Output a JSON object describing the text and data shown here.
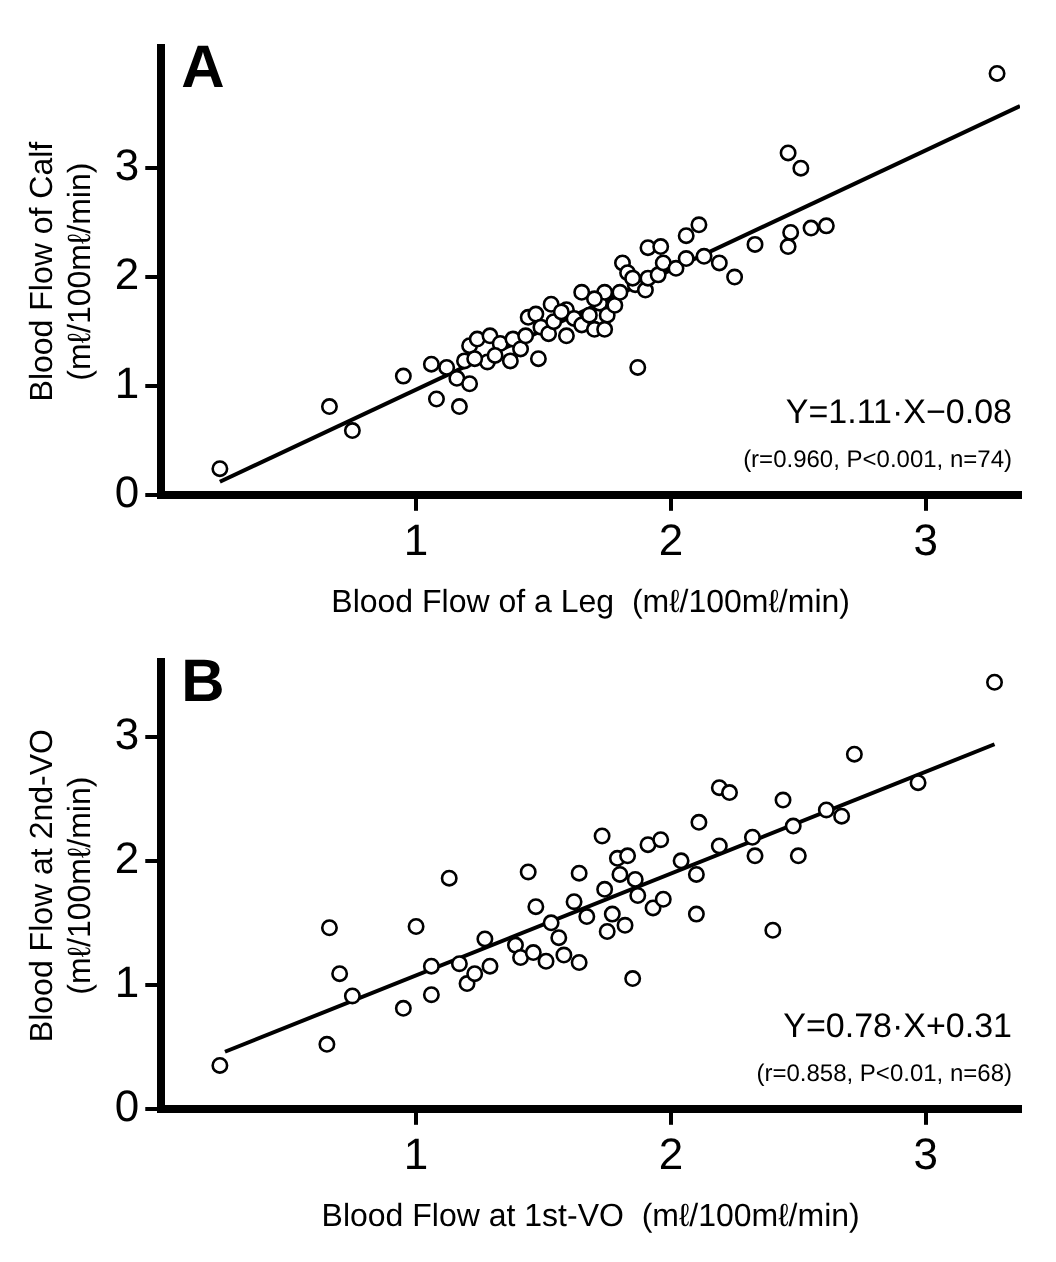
{
  "chart_data": [
    {
      "type": "scatter",
      "title": "A",
      "xlabel": "Blood Flow of a Leg  (mℓ/100mℓ/min)",
      "ylabel": "Blood Flow of Calf\n(mℓ/100mℓ/min)",
      "annotations": [
        "Y=1.11·X−0.08",
        "(r=0.960, P<0.001, n=74)"
      ],
      "xlim": [
        0,
        3.37
      ],
      "ylim": [
        0,
        4.1
      ],
      "xticks": [
        1,
        2,
        3
      ],
      "yticks": [
        0,
        1,
        2,
        3
      ],
      "marker": "circle",
      "grid": false,
      "legend": false,
      "series": [
        {
          "color": "#000000",
          "x": [
            0.23,
            0.66,
            0.75,
            0.95,
            1.06,
            1.08,
            1.12,
            1.17,
            1.16,
            1.21,
            1.19,
            1.21,
            1.24,
            1.29,
            1.28,
            1.33,
            1.37,
            1.38,
            1.41,
            1.43,
            1.44,
            1.48,
            1.47,
            1.49,
            1.52,
            1.53,
            1.54,
            1.59,
            1.59,
            1.62,
            1.65,
            1.65,
            1.68,
            1.7,
            1.72,
            1.74,
            1.75,
            1.78,
            1.81,
            1.8,
            1.83,
            1.86,
            1.87,
            1.9,
            1.91,
            1.96,
            1.91,
            1.95,
            1.97,
            2.02,
            2.06,
            2.06,
            2.11,
            2.13,
            2.19,
            2.25,
            2.33,
            2.46,
            2.51,
            2.46,
            2.47,
            2.55,
            2.61,
            3.28,
            1.23,
            1.31,
            1.57,
            1.7,
            1.85,
            1.74
          ],
          "values": [
            0.24,
            0.81,
            0.59,
            1.09,
            1.2,
            0.88,
            1.17,
            0.81,
            1.07,
            1.02,
            1.23,
            1.37,
            1.43,
            1.46,
            1.22,
            1.39,
            1.23,
            1.43,
            1.34,
            1.46,
            1.63,
            1.25,
            1.66,
            1.54,
            1.48,
            1.75,
            1.59,
            1.46,
            1.7,
            1.62,
            1.86,
            1.56,
            1.65,
            1.52,
            1.76,
            1.86,
            1.65,
            1.74,
            2.13,
            1.86,
            2.04,
            1.93,
            1.17,
            1.88,
            2.27,
            2.28,
            1.99,
            2.02,
            2.13,
            2.08,
            2.38,
            2.17,
            2.48,
            2.19,
            2.13,
            2.0,
            2.3,
            3.14,
            3.0,
            2.28,
            2.41,
            2.45,
            2.47,
            3.87,
            1.25,
            1.28,
            1.68,
            1.8,
            1.99,
            1.52
          ]
        },
        {
          "type": "line",
          "color": "#000000",
          "marker": "none",
          "x": [
            0.23,
            3.37
          ],
          "values": [
            0.12,
            3.57
          ]
        }
      ]
    },
    {
      "type": "scatter",
      "title": "B",
      "xlabel": "Blood Flow at 1st-VO  (mℓ/100mℓ/min)",
      "ylabel": "Blood Flow at 2nd-VO\n(mℓ/100mℓ/min)",
      "annotations": [
        "Y=0.78·X+0.31",
        "(r=0.858, P<0.01, n=68)"
      ],
      "xlim": [
        0,
        3.37
      ],
      "ylim": [
        0,
        3.6
      ],
      "xticks": [
        1,
        2,
        3
      ],
      "yticks": [
        0,
        1,
        2,
        3
      ],
      "marker": "circle",
      "grid": false,
      "legend": false,
      "series": [
        {
          "color": "#000000",
          "x": [
            0.23,
            0.65,
            0.66,
            0.7,
            0.75,
            0.95,
            1.0,
            1.06,
            1.06,
            1.13,
            1.17,
            1.2,
            1.23,
            1.27,
            1.29,
            1.39,
            1.41,
            1.44,
            1.46,
            1.47,
            1.51,
            1.53,
            1.56,
            1.58,
            1.62,
            1.64,
            1.64,
            1.67,
            1.73,
            1.74,
            1.75,
            1.77,
            1.79,
            1.8,
            1.82,
            1.83,
            1.85,
            1.86,
            1.87,
            1.91,
            1.93,
            1.96,
            1.97,
            2.04,
            2.1,
            2.1,
            2.11,
            2.19,
            2.19,
            2.23,
            2.32,
            2.33,
            2.4,
            2.44,
            2.48,
            2.5,
            2.61,
            2.67,
            2.72,
            2.97,
            3.27
          ],
          "values": [
            0.35,
            0.52,
            1.46,
            1.09,
            0.91,
            0.81,
            1.47,
            1.15,
            0.92,
            1.86,
            1.17,
            1.01,
            1.09,
            1.37,
            1.15,
            1.32,
            1.22,
            1.91,
            1.26,
            1.63,
            1.19,
            1.5,
            1.38,
            1.24,
            1.67,
            1.9,
            1.18,
            1.55,
            2.2,
            1.77,
            1.43,
            1.57,
            2.02,
            1.89,
            1.48,
            2.04,
            1.05,
            1.85,
            1.72,
            2.13,
            1.62,
            2.17,
            1.69,
            2.0,
            1.89,
            1.57,
            2.31,
            2.59,
            2.12,
            2.55,
            2.19,
            2.04,
            1.44,
            2.49,
            2.28,
            2.04,
            2.41,
            2.36,
            2.86,
            2.63,
            3.44
          ]
        },
        {
          "type": "line",
          "color": "#000000",
          "marker": "none",
          "x": [
            0.25,
            3.27
          ],
          "values": [
            0.46,
            2.94
          ]
        }
      ]
    }
  ]
}
